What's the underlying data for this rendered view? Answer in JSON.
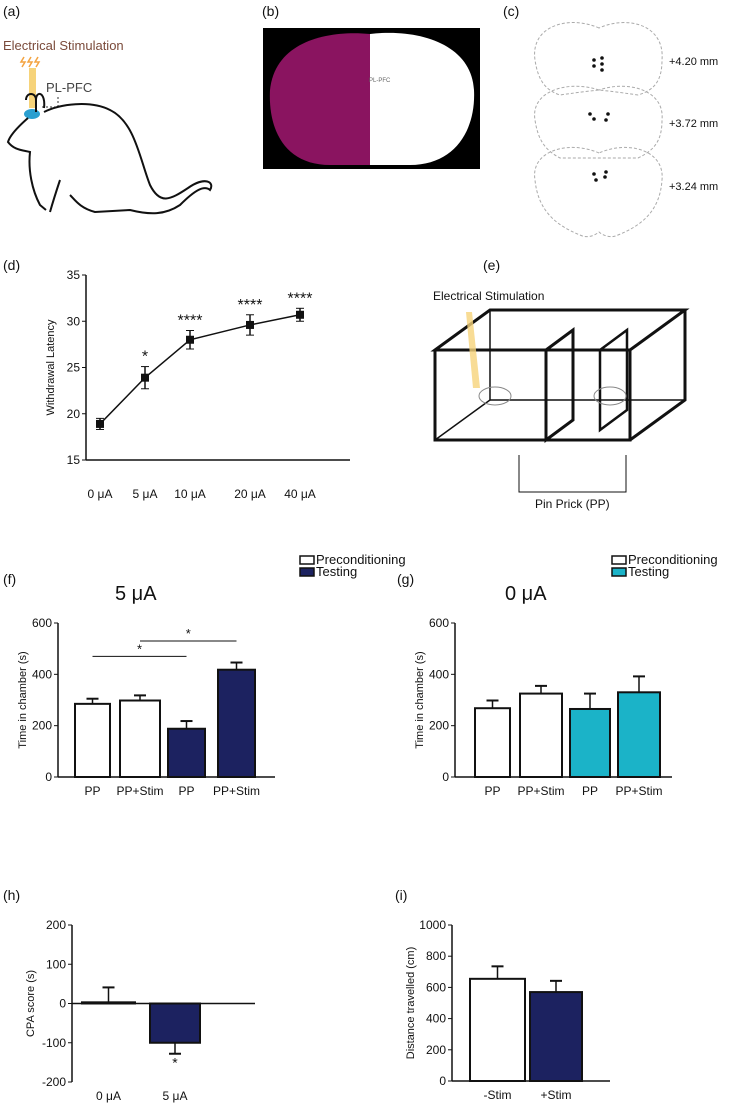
{
  "panels": {
    "a": {
      "label": "(a)",
      "stim_label": "Electrical Stimulation",
      "region_label": "PL-PFC"
    },
    "b": {
      "label": "(b)",
      "region_label": "PL-PFC"
    },
    "c": {
      "label": "(c)",
      "coords": [
        "+4.20 mm",
        "+3.72 mm",
        "+3.24 mm"
      ]
    },
    "e": {
      "label": "(e)",
      "stim_label": "Electrical Stimulation",
      "pp_label": "Pin Prick (PP)"
    }
  },
  "colors": {
    "navy": "#1c2260",
    "cyan": "#1bb3c8",
    "pink": "#8a1460"
  },
  "chart_data": [
    {
      "id": "d",
      "panel_label": "(d)",
      "type": "line",
      "categories": [
        "0 μA",
        "5 μA",
        "10 μA",
        "20 μA",
        "40 μA"
      ],
      "values": [
        18.9,
        23.9,
        28.0,
        29.6,
        30.7
      ],
      "errors": [
        0.6,
        1.2,
        1.0,
        1.1,
        0.7
      ],
      "annotations": [
        "",
        "*",
        "****",
        "****",
        "****"
      ],
      "ylabel": "Withdrawal Latency",
      "ylim": [
        15,
        35
      ],
      "yticks": [
        15,
        20,
        25,
        30,
        35
      ]
    },
    {
      "id": "f",
      "panel_label": "(f)",
      "type": "bar",
      "title": "5 μA",
      "legend": [
        "Preconditioning",
        "Testing"
      ],
      "categories": [
        "PP",
        "PP+Stim",
        "PP",
        "PP+Stim"
      ],
      "values": [
        285,
        298,
        188,
        418
      ],
      "errors": [
        20,
        20,
        30,
        28
      ],
      "groups": [
        "Preconditioning",
        "Preconditioning",
        "Testing",
        "Testing"
      ],
      "significance": [
        {
          "from": 0,
          "to": 2,
          "label": "*"
        },
        {
          "from": 1,
          "to": 3,
          "label": "*"
        }
      ],
      "ylabel": "Time in chamber (s)",
      "ylim": [
        0,
        600
      ],
      "yticks": [
        0,
        200,
        400,
        600
      ]
    },
    {
      "id": "g",
      "panel_label": "(g)",
      "type": "bar",
      "title": "0 μA",
      "legend": [
        "Preconditioning",
        "Testing"
      ],
      "categories": [
        "PP",
        "PP+Stim",
        "PP",
        "PP+Stim"
      ],
      "values": [
        268,
        325,
        265,
        330
      ],
      "errors": [
        30,
        30,
        60,
        62
      ],
      "groups": [
        "Preconditioning",
        "Preconditioning",
        "Testing",
        "Testing"
      ],
      "ylabel": "Time in chamber (s)",
      "ylim": [
        0,
        600
      ],
      "yticks": [
        0,
        200,
        400,
        600
      ]
    },
    {
      "id": "h",
      "panel_label": "(h)",
      "type": "bar",
      "categories": [
        "0 μA",
        "5 μA"
      ],
      "values": [
        3,
        -100
      ],
      "errors": [
        38,
        28
      ],
      "annotations": [
        "",
        "*"
      ],
      "ylabel": "CPA score (s)",
      "ylim": [
        -200,
        200
      ],
      "yticks": [
        -200,
        -100,
        0,
        100,
        200
      ]
    },
    {
      "id": "i",
      "panel_label": "(i)",
      "type": "bar",
      "categories": [
        "-Stim",
        "+Stim"
      ],
      "values": [
        655,
        570
      ],
      "errors": [
        80,
        72
      ],
      "ylabel": "Distance travelled (cm)",
      "ylim": [
        0,
        1000
      ],
      "yticks": [
        0,
        200,
        400,
        600,
        800,
        1000
      ]
    }
  ]
}
